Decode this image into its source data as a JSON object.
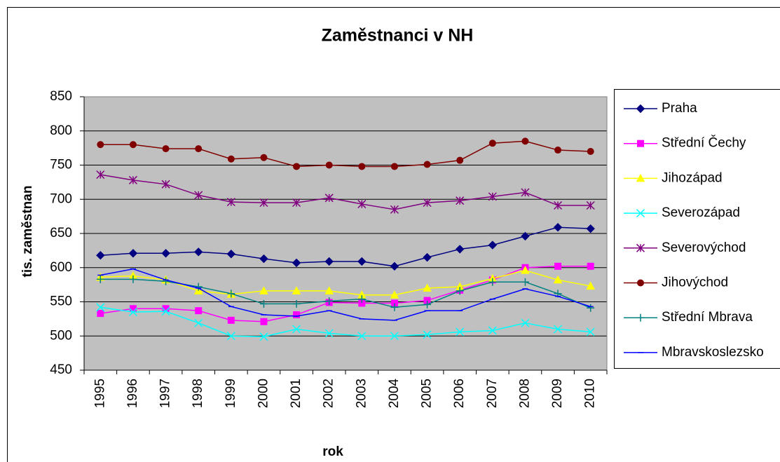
{
  "chart_data": {
    "type": "line",
    "title": "Zaměstnanci v NH",
    "x_label": "rok",
    "y_label": "tis. zaměstnan",
    "categories": [
      "1995",
      "1996",
      "1997",
      "1998",
      "1999",
      "2000",
      "2001",
      "2002",
      "2003",
      "2004",
      "2005",
      "2006",
      "2007",
      "2008",
      "2009",
      "2010"
    ],
    "ylim": [
      450,
      850
    ],
    "yticks": [
      450,
      500,
      550,
      600,
      650,
      700,
      750,
      800,
      850
    ],
    "grid": true,
    "legend": "right",
    "series": [
      {
        "name": "Praha",
        "color": "#000080",
        "marker": "diamond",
        "values": [
          618,
          621,
          621,
          623,
          620,
          613,
          607,
          609,
          609,
          602,
          615,
          627,
          633,
          646,
          659,
          657
        ]
      },
      {
        "name": "Střední Čechy",
        "color": "#ff00ff",
        "marker": "square",
        "values": [
          533,
          540,
          540,
          537,
          523,
          521,
          531,
          549,
          548,
          548,
          552,
          567,
          582,
          600,
          602,
          602
        ]
      },
      {
        "name": "Jihozápad",
        "color": "#ffff00",
        "marker": "triangle",
        "values": [
          586,
          588,
          582,
          566,
          561,
          566,
          566,
          566,
          560,
          560,
          570,
          572,
          584,
          596,
          582,
          573
        ]
      },
      {
        "name": "Severozápad",
        "color": "#00ffff",
        "marker": "x",
        "values": [
          542,
          535,
          536,
          519,
          500,
          499,
          510,
          504,
          500,
          500,
          502,
          506,
          508,
          519,
          510,
          506
        ]
      },
      {
        "name": "Severovýchod",
        "color": "#800080",
        "marker": "star",
        "values": [
          736,
          728,
          722,
          706,
          696,
          695,
          695,
          702,
          693,
          685,
          695,
          698,
          704,
          710,
          691,
          691
        ]
      },
      {
        "name": "Jihovýchod",
        "color": "#800000",
        "marker": "circle",
        "values": [
          780,
          780,
          774,
          774,
          759,
          761,
          748,
          750,
          748,
          748,
          751,
          757,
          782,
          785,
          772,
          770
        ]
      },
      {
        "name": "Střední Mbrava",
        "color": "#008080",
        "marker": "plus",
        "values": [
          583,
          583,
          580,
          572,
          562,
          547,
          547,
          551,
          554,
          542,
          546,
          566,
          579,
          579,
          562,
          541
        ]
      },
      {
        "name": "Mbravskoslezsko",
        "color": "#0000ff",
        "marker": "dash",
        "values": [
          589,
          598,
          582,
          570,
          543,
          531,
          529,
          537,
          525,
          523,
          537,
          537,
          554,
          569,
          558,
          543
        ]
      }
    ]
  }
}
